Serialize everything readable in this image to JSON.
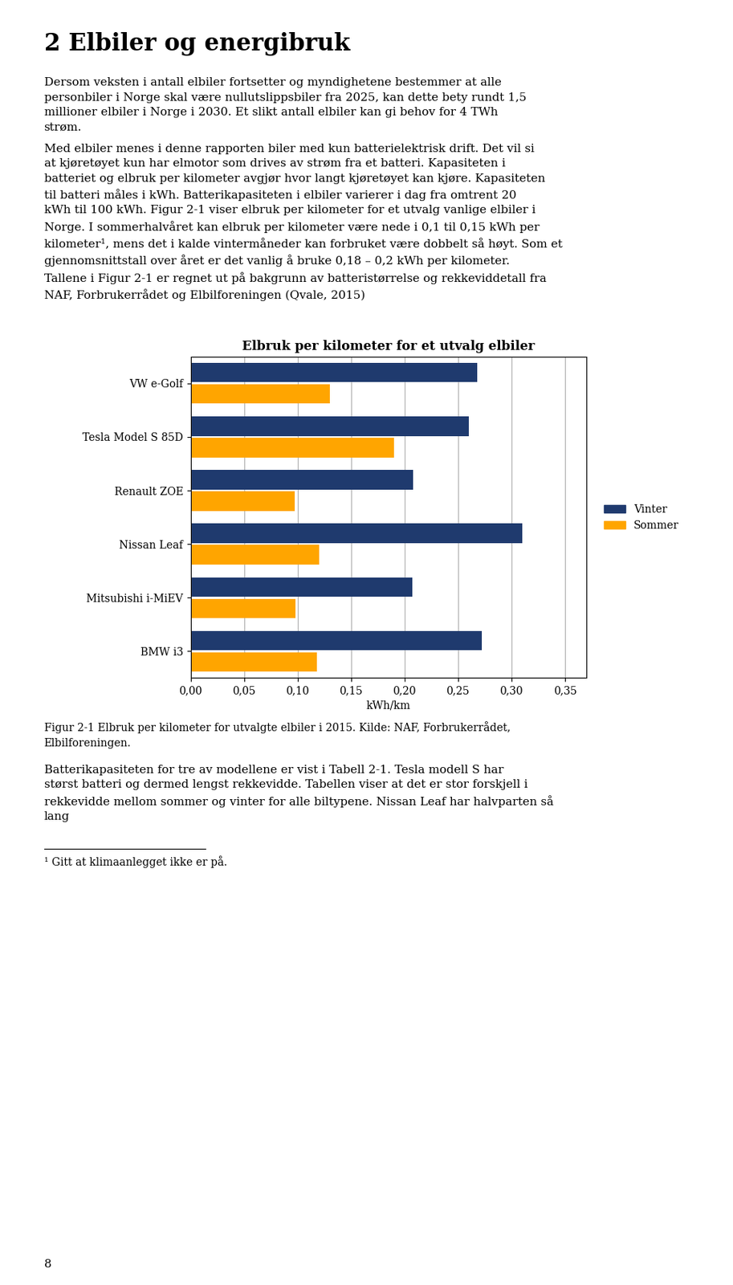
{
  "page_title": "2 Elbiler og energibruk",
  "text_before": [
    "Dersom veksten i antall elbiler fortsetter og myndighetene bestemmer at alle personbiler i Norge skal være nullutslippsbiler fra 2025, kan dette bety rundt 1,5 millioner elbiler i Norge i 2030. Et slikt antall elbiler kan gi behov for 4 TWh strøm.",
    "Med elbiler menes i denne rapporten biler med kun batterielektrisk drift. Det vil si at kjøretøyet kun har elmotor som drives av strøm fra et batteri. Kapasiteten i batteriet og elbruk per kilometer avgjør hvor langt kjøretøyet kan kjøre. Kapasiteten til batteri måles i kWh. Batterikapasiteten i elbiler varierer i dag fra omtrent 20 kWh til 100 kWh. Figur 2-1 viser elbruk per kilometer for et utvalg vanlige elbiler i Norge. I sommerhalvåret kan elbruk per kilometer være nede i 0,1 til 0,15 kWh per kilometer¹, mens det i kalde vintermåneder kan forbruket være dobbelt så høyt. Som et gjennomsnittstall over året er det vanlig å bruke 0,18 – 0,2 kWh per kilometer. Tallene i Figur 2-1 er regnet ut på bakgrunn av batteristørrelse og rekkeviddetall fra NAF, Forbrukerrådet og Elbilforeningen (Qvale, 2015)"
  ],
  "chart_data": {
    "type": "bar",
    "orientation": "horizontal",
    "title": "Elbruk per kilometer for et utvalg elbiler",
    "categories": [
      "VW e-Golf",
      "Tesla Model S 85D",
      "Renault ZOE",
      "Nissan Leaf",
      "Mitsubishi i-MiEV",
      "BMW i3"
    ],
    "series": [
      {
        "name": "Vinter",
        "color": "#1F3A6E",
        "values": [
          0.268,
          0.26,
          0.208,
          0.31,
          0.207,
          0.272
        ]
      },
      {
        "name": "Sommer",
        "color": "#FFA500",
        "values": [
          0.13,
          0.19,
          0.097,
          0.12,
          0.098,
          0.118
        ]
      }
    ],
    "xlabel": "kWh/km",
    "xlim": [
      0,
      0.37
    ],
    "xticks": [
      {
        "value": 0.0,
        "label": "0,00"
      },
      {
        "value": 0.05,
        "label": "0,05"
      },
      {
        "value": 0.1,
        "label": "0,10"
      },
      {
        "value": 0.15,
        "label": "0,15"
      },
      {
        "value": 0.2,
        "label": "0,20"
      },
      {
        "value": 0.25,
        "label": "0,25"
      },
      {
        "value": 0.3,
        "label": "0,30"
      },
      {
        "value": 0.35,
        "label": "0,35"
      }
    ],
    "grid": true,
    "legend": "right"
  },
  "caption": "Figur 2-1 Elbruk per kilometer for utvalgte elbiler i 2015. Kilde: NAF, Forbrukerrådet, Elbilforeningen.",
  "text_after": [
    "Batterikapasiteten for tre av modellene er vist i Tabell 2-1. Tesla modell S har størst batteri og dermed lengst rekkevidde. Tabellen viser at det er stor forskjell i rekkevidde mellom sommer og vinter for alle biltypene. Nissan Leaf har halvparten så lang"
  ],
  "footnote": "¹ Gitt at klimaanlegget ikke er på.",
  "page_number": "8"
}
